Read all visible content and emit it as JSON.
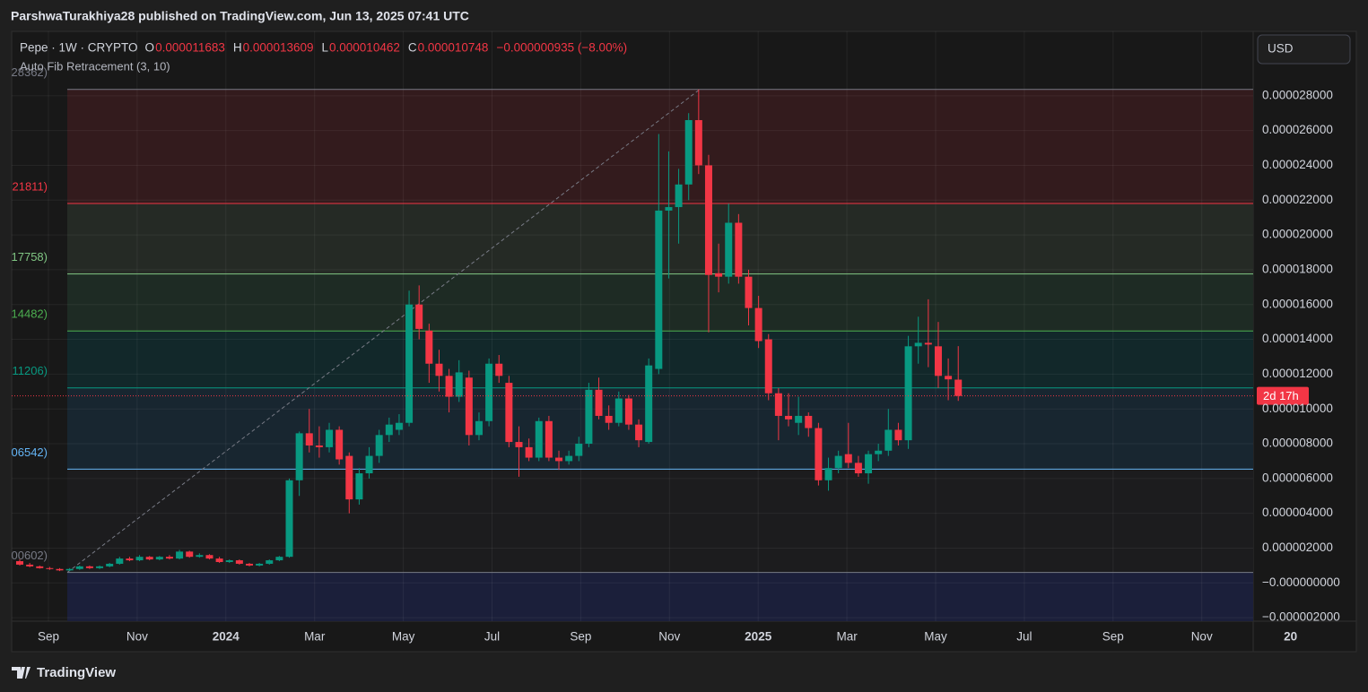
{
  "header": {
    "publisher": "ParshwaTurakhiya28 published on TradingView.com, Jun 13, 2025 07:41 UTC",
    "brand": "TradingView"
  },
  "chart_data": {
    "type": "candlestick",
    "symbol": "Pepe · 1W · CRYPTO",
    "ohlc_letters": [
      "O",
      "H",
      "L",
      "C"
    ],
    "change": "−0.000000935 (−8.00%)",
    "currency": "USD",
    "countdown": "2d 17h",
    "up_color": "#089981",
    "down_color": "#f23645",
    "grid": true,
    "xlabels": [
      "Sep",
      "Nov",
      "2024",
      "Mar",
      "May",
      "Jul",
      "Sep",
      "Nov",
      "2025",
      "Mar",
      "May",
      "Jul",
      "Sep",
      "Nov",
      "20"
    ],
    "ylim": [
      -2.2e-06,
      3.17e-05
    ],
    "yticks": [
      {
        "value": 2.8e-05,
        "label": "0.000028000"
      },
      {
        "value": 2.6e-05,
        "label": "0.000026000"
      },
      {
        "value": 2.4e-05,
        "label": "0.000024000"
      },
      {
        "value": 2.2e-05,
        "label": "0.000022000"
      },
      {
        "value": 2e-05,
        "label": "0.000020000"
      },
      {
        "value": 1.8e-05,
        "label": "0.000018000"
      },
      {
        "value": 1.6e-05,
        "label": "0.000016000"
      },
      {
        "value": 1.4e-05,
        "label": "0.000014000"
      },
      {
        "value": 1.2e-05,
        "label": "0.000012000"
      },
      {
        "value": 1e-05,
        "label": "0.000010000"
      },
      {
        "value": 8e-06,
        "label": "0.000008000"
      },
      {
        "value": 6e-06,
        "label": "0.000006000"
      },
      {
        "value": 4e-06,
        "label": "0.000004000"
      },
      {
        "value": 2e-06,
        "label": "0.000002000"
      },
      {
        "value": 0,
        "label": "−0.000000000"
      },
      {
        "value": -2e-06,
        "label": "−0.000002000"
      }
    ],
    "fib": {
      "name": "Auto Fib Retracement (3, 10)",
      "levels": [
        2.8362e-05,
        2.1811e-05,
        1.7758e-05,
        1.4482e-05,
        1.1206e-05,
        6.542e-06,
        6.02e-07
      ],
      "value_labels": [
        "28362)",
        "21811)",
        "17758)",
        "14482)",
        "11206)",
        "06542)",
        "00602)"
      ],
      "colors": [
        "#787b86",
        "#f23645",
        "#81c784",
        "#4caf50",
        "#089981",
        "#64b5f6",
        "#787b86"
      ],
      "fills": [
        "#331b1d",
        "#252a25",
        "#1e2b24",
        "#12282a",
        "#182630",
        "#1c1c1e",
        "#1b1f3a"
      ]
    },
    "candles": [
      [
        1.25e-06,
        1.35e-06,
        1e-06,
        1.05e-06
      ],
      [
        1.05e-06,
        1.15e-06,
        9e-07,
        9.5e-07
      ],
      [
        9.5e-07,
        1e-06,
        8.2e-07,
        8.5e-07
      ],
      [
        8.5e-07,
        9.2e-07,
        7.5e-07,
        8e-07
      ],
      [
        8e-07,
        8.5e-07,
        6.8e-07,
        7.2e-07
      ],
      [
        7.2e-07,
        8.5e-07,
        6.8e-07,
        8e-07
      ],
      [
        8e-07,
        1e-06,
        7.5e-07,
        9.5e-07
      ],
      [
        9.5e-07,
        1e-06,
        8e-07,
        8.5e-07
      ],
      [
        8.5e-07,
        1e-06,
        8e-07,
        9.5e-07
      ],
      [
        9.5e-07,
        1.15e-06,
        9e-07,
        1.1e-06
      ],
      [
        1.1e-06,
        1.5e-06,
        1.05e-06,
        1.4e-06
      ],
      [
        1.4e-06,
        1.5e-06,
        1.25e-06,
        1.3e-06
      ],
      [
        1.3e-06,
        1.6e-06,
        1.25e-06,
        1.5e-06
      ],
      [
        1.5e-06,
        1.55e-06,
        1.3e-06,
        1.35e-06
      ],
      [
        1.35e-06,
        1.55e-06,
        1.3e-06,
        1.5e-06
      ],
      [
        1.5e-06,
        1.6e-06,
        1.35e-06,
        1.4e-06
      ],
      [
        1.4e-06,
        1.9e-06,
        1.35e-06,
        1.8e-06
      ],
      [
        1.8e-06,
        1.85e-06,
        1.45e-06,
        1.5e-06
      ],
      [
        1.5e-06,
        1.7e-06,
        1.45e-06,
        1.6e-06
      ],
      [
        1.6e-06,
        1.65e-06,
        1.35e-06,
        1.4e-06
      ],
      [
        1.4e-06,
        1.5e-06,
        1.15e-06,
        1.2e-06
      ],
      [
        1.2e-06,
        1.35e-06,
        1.15e-06,
        1.3e-06
      ],
      [
        1.3e-06,
        1.35e-06,
        1.05e-06,
        1.1e-06
      ],
      [
        1.1e-06,
        1.15e-06,
        9.5e-07,
        1e-06
      ],
      [
        1e-06,
        1.15e-06,
        9.5e-07,
        1.1e-06
      ],
      [
        1.1e-06,
        1.35e-06,
        1.05e-06,
        1.3e-06
      ],
      [
        1.3e-06,
        1.55e-06,
        1.25e-06,
        1.5e-06
      ],
      [
        1.5e-06,
        6e-06,
        1.45e-06,
        5.9e-06
      ],
      [
        5.9e-06,
        8.7e-06,
        5e-06,
        8.6e-06
      ],
      [
        8.6e-06,
        1e-05,
        7.5e-06,
        7.9e-06
      ],
      [
        7.9e-06,
        9e-06,
        7.2e-06,
        7.8e-06
      ],
      [
        7.8e-06,
        9.2e-06,
        7.5e-06,
        8.8e-06
      ],
      [
        8.8e-06,
        9e-06,
        6.8e-06,
        7.1e-06
      ],
      [
        7.3e-06,
        7.5e-06,
        4e-06,
        4.8e-06
      ],
      [
        4.8e-06,
        6.6e-06,
        4.5e-06,
        6.3e-06
      ],
      [
        6.3e-06,
        7.8e-06,
        6e-06,
        7.3e-06
      ],
      [
        7.3e-06,
        8.8e-06,
        6.9e-06,
        8.5e-06
      ],
      [
        8.5e-06,
        9.5e-06,
        8.1e-06,
        9.1e-06
      ],
      [
        8.8e-06,
        9.7e-06,
        8.5e-06,
        9.2e-06
      ],
      [
        9.2e-06,
        1.68e-05,
        9e-06,
        1.6e-05
      ],
      [
        1.6e-05,
        1.71e-05,
        1.4e-05,
        1.46e-05
      ],
      [
        1.45e-05,
        1.49e-05,
        1.15e-05,
        1.26e-05
      ],
      [
        1.26e-05,
        1.34e-05,
        1.1e-05,
        1.19e-05
      ],
      [
        1.19e-05,
        1.23e-05,
        9.8e-06,
        1.07e-05
      ],
      [
        1.07e-05,
        1.28e-05,
        1.04e-05,
        1.21e-05
      ],
      [
        1.18e-05,
        1.22e-05,
        7.9e-06,
        8.5e-06
      ],
      [
        8.5e-06,
        9.8e-06,
        8.2e-06,
        9.3e-06
      ],
      [
        9.3e-06,
        1.29e-05,
        9e-06,
        1.26e-05
      ],
      [
        1.26e-05,
        1.31e-05,
        1.15e-05,
        1.19e-05
      ],
      [
        1.15e-05,
        1.19e-05,
        7.8e-06,
        8.1e-06
      ],
      [
        8.1e-06,
        9e-06,
        6.1e-06,
        7.8e-06
      ],
      [
        7.8e-06,
        8.3e-06,
        7e-06,
        7.2e-06
      ],
      [
        7.2e-06,
        9.5e-06,
        7e-06,
        9.3e-06
      ],
      [
        9.3e-06,
        9.6e-06,
        7e-06,
        7.2e-06
      ],
      [
        7.2e-06,
        7.6e-06,
        6.5e-06,
        7e-06
      ],
      [
        7e-06,
        7.6e-06,
        6.8e-06,
        7.3e-06
      ],
      [
        7.3e-06,
        8.4e-06,
        7e-06,
        8e-06
      ],
      [
        8e-06,
        1.15e-05,
        7.8e-06,
        1.11e-05
      ],
      [
        1.11e-05,
        1.18e-05,
        9.4e-06,
        9.6e-06
      ],
      [
        9.6e-06,
        1.02e-05,
        8.8e-06,
        9.2e-06
      ],
      [
        9.2e-06,
        1.1e-05,
        9e-06,
        1.06e-05
      ],
      [
        1.06e-05,
        1.08e-05,
        8.8e-06,
        9.1e-06
      ],
      [
        9.1e-06,
        9.4e-06,
        7.8e-06,
        8.2e-06
      ],
      [
        8.1e-06,
        1.29e-05,
        8e-06,
        1.25e-05
      ],
      [
        1.23e-05,
        2.58e-05,
        1.2e-05,
        2.14e-05
      ],
      [
        2.14e-05,
        2.48e-05,
        1.75e-05,
        2.16e-05
      ],
      [
        2.16e-05,
        2.38e-05,
        1.95e-05,
        2.29e-05
      ],
      [
        2.29e-05,
        2.7e-05,
        2.2e-05,
        2.66e-05
      ],
      [
        2.66e-05,
        2.836e-05,
        2.35e-05,
        2.4e-05
      ],
      [
        2.4e-05,
        2.46e-05,
        1.44e-05,
        1.77e-05
      ],
      [
        1.78e-05,
        1.95e-05,
        1.67e-05,
        1.76e-05
      ],
      [
        1.76e-05,
        2.18e-05,
        1.72e-05,
        2.07e-05
      ],
      [
        2.07e-05,
        2.12e-05,
        1.72e-05,
        1.76e-05
      ],
      [
        1.76e-05,
        1.8e-05,
        1.48e-05,
        1.58e-05
      ],
      [
        1.58e-05,
        1.65e-05,
        1.35e-05,
        1.39e-05
      ],
      [
        1.4e-05,
        1.43e-05,
        1.05e-05,
        1.09e-05
      ],
      [
        1.09e-05,
        1.12e-05,
        8.2e-06,
        9.6e-06
      ],
      [
        9.6e-06,
        1.09e-05,
        9e-06,
        9.4e-06
      ],
      [
        9.2e-06,
        1.07e-05,
        8.5e-06,
        9.6e-06
      ],
      [
        9.6e-06,
        9.8e-06,
        8.4e-06,
        8.9e-06
      ],
      [
        8.9e-06,
        9.2e-06,
        5.6e-06,
        5.9e-06
      ],
      [
        5.9e-06,
        7.2e-06,
        5.3e-06,
        6.6e-06
      ],
      [
        6.6e-06,
        7.6e-06,
        6.3e-06,
        7.3e-06
      ],
      [
        7.4e-06,
        9.2e-06,
        6.6e-06,
        6.9e-06
      ],
      [
        6.9e-06,
        7.3e-06,
        6.1e-06,
        6.3e-06
      ],
      [
        6.3e-06,
        7.6e-06,
        5.7e-06,
        7.4e-06
      ],
      [
        7.4e-06,
        8e-06,
        7e-06,
        7.6e-06
      ],
      [
        7.6e-06,
        1e-05,
        7.3e-06,
        8.8e-06
      ],
      [
        8.8e-06,
        9.2e-06,
        7.9e-06,
        8.2e-06
      ],
      [
        8.2e-06,
        1.42e-05,
        7.7e-06,
        1.36e-05
      ],
      [
        1.36e-05,
        1.53e-05,
        1.26e-05,
        1.38e-05
      ],
      [
        1.38e-05,
        1.63e-05,
        1.24e-05,
        1.37e-05
      ],
      [
        1.36e-05,
        1.5e-05,
        1.12e-05,
        1.19e-05
      ],
      [
        1.19e-05,
        1.29e-05,
        1.05e-05,
        1.17e-05
      ],
      [
        1.1683e-05,
        1.3609e-05,
        1.0462e-05,
        1.0748e-05
      ]
    ]
  }
}
